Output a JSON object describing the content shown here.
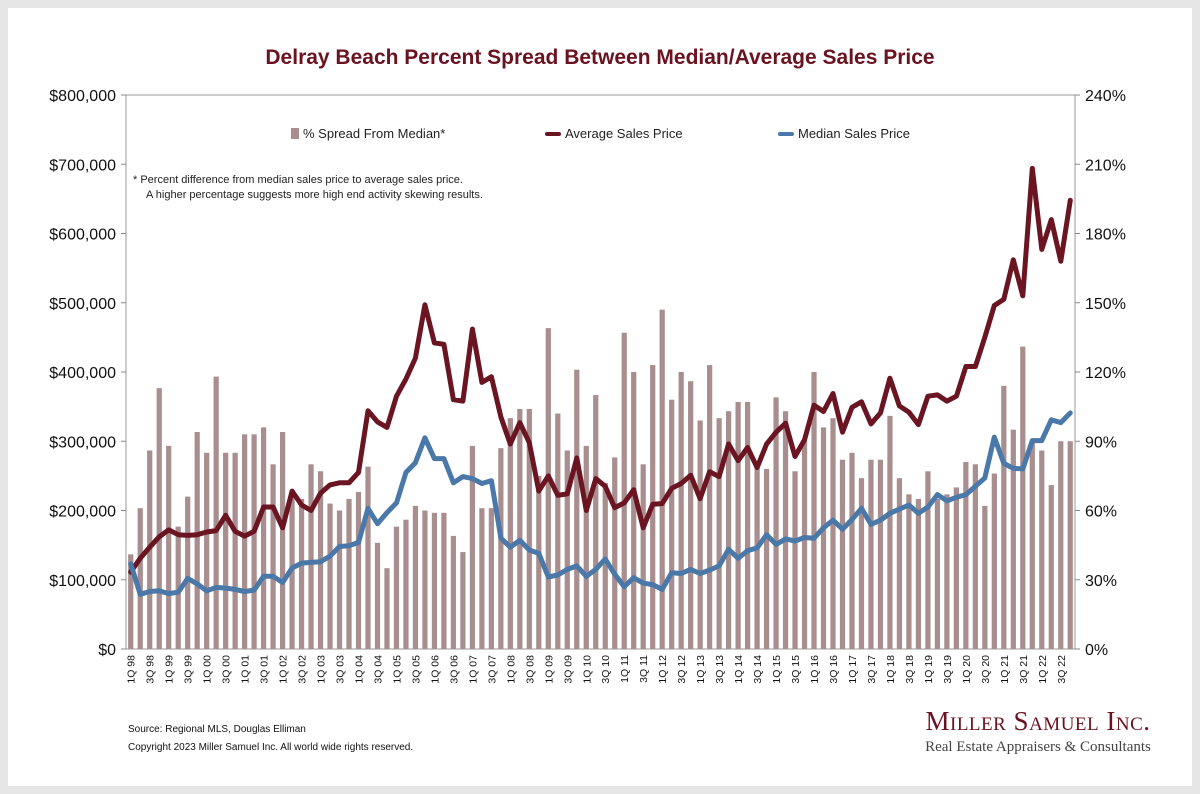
{
  "chart_data": {
    "type": "bar+line",
    "title": "Delray Beach Percent Spread Between Median/Average Sales Price",
    "categories": [
      "1Q 98",
      "2Q 98",
      "3Q 98",
      "4Q 98",
      "1Q 99",
      "2Q 99",
      "3Q 99",
      "4Q 99",
      "1Q 00",
      "2Q 00",
      "3Q 00",
      "4Q 00",
      "1Q 01",
      "2Q 01",
      "3Q 01",
      "4Q 01",
      "1Q 02",
      "2Q 02",
      "3Q 02",
      "4Q 02",
      "1Q 03",
      "2Q 03",
      "3Q 03",
      "4Q 03",
      "1Q 04",
      "2Q 04",
      "3Q 04",
      "4Q 04",
      "1Q 05",
      "2Q 05",
      "3Q 05",
      "4Q 05",
      "1Q 06",
      "2Q 06",
      "3Q 06",
      "4Q 06",
      "1Q 07",
      "2Q 07",
      "3Q 07",
      "4Q 07",
      "1Q 08",
      "2Q 08",
      "3Q 08",
      "4Q 08",
      "1Q 09",
      "2Q 09",
      "3Q 09",
      "4Q 09",
      "1Q 10",
      "2Q 10",
      "3Q 10",
      "4Q 10",
      "1Q 11",
      "2Q 11",
      "3Q 11",
      "4Q 11",
      "1Q 12",
      "2Q 12",
      "3Q 12",
      "4Q 12",
      "1Q 13",
      "2Q 13",
      "3Q 13",
      "4Q 13",
      "1Q 14",
      "2Q 14",
      "3Q 14",
      "4Q 14",
      "1Q 15",
      "2Q 15",
      "3Q 15",
      "4Q 15",
      "1Q 16",
      "2Q 16",
      "3Q 16",
      "4Q 16",
      "1Q 17",
      "2Q 17",
      "3Q 17",
      "4Q 17",
      "1Q 18",
      "2Q 18",
      "3Q 18",
      "4Q 18",
      "1Q 19",
      "2Q 19",
      "3Q 19",
      "4Q 19",
      "1Q 20",
      "2Q 20",
      "3Q 20",
      "4Q 20",
      "1Q 21",
      "2Q 21",
      "3Q 21",
      "4Q 21",
      "1Q 22",
      "2Q 22",
      "3Q 22",
      "4Q 22"
    ],
    "x_tick_labels": [
      "1Q 98",
      "3Q 98",
      "1Q 99",
      "3Q 99",
      "1Q 00",
      "3Q 00",
      "1Q 01",
      "3Q 01",
      "1Q 02",
      "3Q 02",
      "1Q 03",
      "3Q 03",
      "1Q 04",
      "3Q 04",
      "1Q 05",
      "3Q 05",
      "1Q 06",
      "3Q 06",
      "1Q 07",
      "3Q 07",
      "1Q 08",
      "3Q 08",
      "1Q 09",
      "3Q 09",
      "1Q 10",
      "3Q 10",
      "1Q 11",
      "3Q 11",
      "1Q 12",
      "3Q 12",
      "1Q 13",
      "3Q 13",
      "1Q 14",
      "3Q 14",
      "1Q 15",
      "3Q 15",
      "1Q 16",
      "3Q 16",
      "1Q 17",
      "3Q 17",
      "1Q 18",
      "3Q 18",
      "1Q 19",
      "3Q 19",
      "1Q 20",
      "3Q 20",
      "1Q 21",
      "3Q 21",
      "1Q 22",
      "3Q 22"
    ],
    "left_axis": {
      "ticks": [
        "$0",
        "$100,000",
        "$200,000",
        "$300,000",
        "$400,000",
        "$500,000",
        "$600,000",
        "$700,000",
        "$800,000"
      ],
      "ylim": [
        0,
        800000
      ]
    },
    "right_axis": {
      "ticks": [
        "0%",
        "30%",
        "60%",
        "90%",
        "120%",
        "150%",
        "180%",
        "210%",
        "240%"
      ],
      "ylim": [
        0,
        240
      ]
    },
    "grid": false,
    "series": [
      {
        "name": "% Spread From Median*",
        "type": "bar",
        "axis": "right",
        "color": "#a88e8e",
        "values": [
          41,
          61,
          86,
          113,
          88,
          53,
          66,
          94,
          85,
          118,
          85,
          85,
          93,
          93,
          96,
          80,
          94,
          67,
          65,
          80,
          77,
          63,
          60,
          65,
          68,
          79,
          46,
          35,
          53,
          56,
          62,
          60,
          59,
          59,
          49,
          42,
          88,
          61,
          61,
          87,
          100,
          104,
          104,
          75,
          139,
          102,
          86,
          121,
          88,
          110,
          72,
          83,
          137,
          120,
          80,
          123,
          147,
          108,
          120,
          116,
          99,
          123,
          100,
          103,
          107,
          107,
          81,
          78,
          109,
          103,
          77,
          90,
          120,
          96,
          100,
          82,
          85,
          74,
          82,
          82,
          101,
          74,
          67,
          65,
          77,
          65,
          67,
          70,
          81,
          80,
          62,
          76,
          114,
          95,
          131,
          90,
          86,
          71,
          90,
          90
        ],
        "unit": "%"
      },
      {
        "name": "Average Sales Price",
        "type": "line",
        "axis": "left",
        "color": "#6b1523",
        "values": [
          111000,
          131000,
          147000,
          162000,
          172000,
          165000,
          164000,
          165000,
          169000,
          171000,
          193000,
          170000,
          163000,
          170000,
          205000,
          205000,
          175000,
          228000,
          208000,
          200000,
          225000,
          237000,
          240000,
          240000,
          255000,
          344000,
          328000,
          320000,
          365000,
          390000,
          420000,
          497000,
          442000,
          440000,
          360000,
          358000,
          462000,
          385000,
          393000,
          335000,
          296000,
          327000,
          298000,
          228000,
          250000,
          222000,
          224000,
          276000,
          200000,
          246000,
          235000,
          204000,
          211000,
          230000,
          175000,
          209000,
          210000,
          232000,
          239000,
          251000,
          217000,
          256000,
          249000,
          296000,
          272000,
          291000,
          262000,
          296000,
          313000,
          326000,
          278000,
          302000,
          352000,
          343000,
          369000,
          313000,
          349000,
          357000,
          325000,
          341000,
          391000,
          351000,
          342000,
          324000,
          365000,
          367000,
          358000,
          365000,
          408000,
          408000,
          450000,
          496000,
          505000,
          562000,
          510000,
          694000,
          577000,
          620000,
          560000,
          648000
        ],
        "unit": "$"
      },
      {
        "name": "Median Sales Price",
        "type": "line",
        "axis": "left",
        "color": "#4a78a8",
        "values": [
          123000,
          79000,
          83000,
          84000,
          80000,
          82000,
          102000,
          94000,
          84000,
          89000,
          88000,
          86000,
          83000,
          85000,
          105000,
          105000,
          96000,
          117000,
          124000,
          125000,
          126000,
          134000,
          148000,
          149000,
          154000,
          203000,
          181000,
          197000,
          211000,
          255000,
          269000,
          305000,
          275000,
          275000,
          240000,
          249000,
          246000,
          239000,
          243000,
          160000,
          147000,
          157000,
          143000,
          138000,
          104000,
          107000,
          115000,
          120000,
          105000,
          115000,
          130000,
          108000,
          90000,
          103000,
          95000,
          93000,
          86000,
          110000,
          109000,
          115000,
          109000,
          114000,
          120000,
          144000,
          131000,
          142000,
          146000,
          165000,
          151000,
          159000,
          156000,
          161000,
          160000,
          175000,
          186000,
          173000,
          187000,
          203000,
          180000,
          186000,
          196000,
          202000,
          208000,
          196000,
          205000,
          223000,
          214000,
          219000,
          223000,
          235000,
          247000,
          306000,
          268000,
          261000,
          260000,
          301000,
          301000,
          331000,
          327000,
          341000
        ],
        "unit": "$"
      }
    ],
    "legend_position": "top",
    "footnote": [
      "*  Percent difference from median sales price to average sales price.",
      "A higher percentage suggests more high end activity skewing results."
    ]
  },
  "source": "Source: Regional MLS, Douglas Elliman",
  "copyright": "Copyright 2023 Miller Samuel Inc.  All world wide rights reserved.",
  "brand": {
    "name": "Miller Samuel Inc.",
    "tagline": "Real Estate Appraisers & Consultants"
  }
}
